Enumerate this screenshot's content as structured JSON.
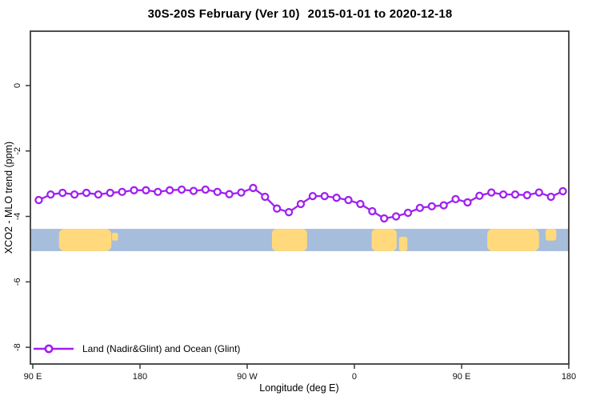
{
  "header": {
    "title_left": "30S-20S February (Ver 10)",
    "title_right": "2015-01-01 to 2020-12-18"
  },
  "chart_data": {
    "type": "line",
    "title": "30S-20S February (Ver 10)  2015-01-01 to 2020-12-18",
    "xlabel": "Longitude (deg E)",
    "ylabel": "XCO2 - MLO trend (ppm)",
    "axes": {
      "xlim": [
        88,
        540
      ],
      "ylim": [
        -8.51,
        1.66
      ],
      "x_ticks": [
        {
          "lon": 90,
          "label": "90 E"
        },
        {
          "lon": 180,
          "label": "180"
        },
        {
          "lon": 270,
          "label": "90 W"
        },
        {
          "lon": 360,
          "label": "0"
        },
        {
          "lon": 450,
          "label": "90 E"
        },
        {
          "lon": 540,
          "label": "180"
        }
      ],
      "y_ticks": [
        {
          "value": 0,
          "label": "0"
        },
        {
          "value": -2,
          "label": "-2"
        },
        {
          "value": -4,
          "label": "-4"
        },
        {
          "value": -6,
          "label": "-6"
        },
        {
          "value": -8,
          "label": "-8"
        }
      ],
      "grid": false,
      "box": true
    },
    "series": [
      {
        "name": "Land (Nadir&Glint) and Ocean (Glint)",
        "color": "#A020F0",
        "marker": "open-circle",
        "x": [
          95,
          105,
          115,
          125,
          135,
          145,
          155,
          165,
          175,
          185,
          195,
          205,
          215,
          225,
          235,
          245,
          255,
          265,
          275,
          285,
          295,
          305,
          315,
          325,
          335,
          345,
          355,
          365,
          375,
          385,
          395,
          405,
          415,
          425,
          435,
          445,
          455,
          465,
          475,
          485,
          495,
          505,
          515,
          525,
          535
        ],
        "y": [
          -3.5,
          -3.33,
          -3.28,
          -3.33,
          -3.28,
          -3.33,
          -3.28,
          -3.25,
          -3.2,
          -3.2,
          -3.25,
          -3.2,
          -3.18,
          -3.22,
          -3.18,
          -3.25,
          -3.32,
          -3.27,
          -3.13,
          -3.4,
          -3.76,
          -3.87,
          -3.62,
          -3.38,
          -3.38,
          -3.43,
          -3.5,
          -3.62,
          -3.84,
          -4.06,
          -4.0,
          -3.89,
          -3.74,
          -3.69,
          -3.66,
          -3.47,
          -3.57,
          -3.37,
          -3.27,
          -3.33,
          -3.33,
          -3.35,
          -3.27,
          -3.4,
          -3.23
        ]
      }
    ],
    "legend": {
      "position": "bottom-left",
      "entries": [
        "Land (Nadir&Glint) and Ocean (Glint)"
      ]
    },
    "map_strip": {
      "description": "land-ocean strip of 30S-20S latitude band",
      "ocean_color": "#A6BDDC",
      "land_color": "#FFD97C",
      "ppm_top": -4.38,
      "ppm_bottom": -5.06,
      "land_patches": [
        {
          "name": "australia",
          "lon": [
            112.0,
            156.0
          ],
          "top": -4.38,
          "bottom": -5.06,
          "r": 7
        },
        {
          "name": "australia-tail",
          "lon": [
            156.5,
            161.5
          ],
          "top": -4.5,
          "bottom": -4.74,
          "r": 2
        },
        {
          "name": "south-america",
          "lon": [
            290.8,
            320.3
          ],
          "top": -4.38,
          "bottom": -5.06,
          "r": 6
        },
        {
          "name": "africa",
          "lon": [
            374.5,
            395.5
          ],
          "top": -4.38,
          "bottom": -5.06,
          "r": 6
        },
        {
          "name": "madagascar",
          "lon": [
            397.5,
            404.5
          ],
          "top": -4.62,
          "bottom": -5.06,
          "r": 3
        },
        {
          "name": "australia-2",
          "lon": [
            471.5,
            515.0
          ],
          "top": -4.38,
          "bottom": -5.06,
          "r": 7
        },
        {
          "name": "new-caledonia",
          "lon": [
            520.5,
            529.5
          ],
          "top": -4.38,
          "bottom": -4.74,
          "r": 3
        }
      ]
    },
    "style": {
      "line_color": "#A020F0",
      "line_width": 2.3,
      "marker_radius": 4.0,
      "axis_color": "#3a3a3a"
    }
  }
}
